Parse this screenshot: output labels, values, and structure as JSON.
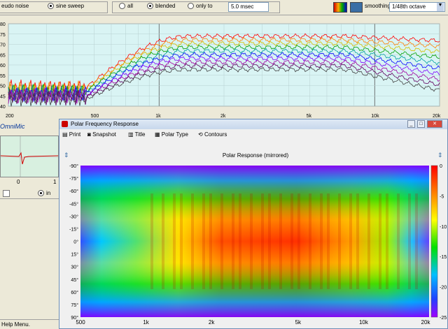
{
  "toolbar": {
    "pseudo_noise": "eudo noise",
    "sine_sweep": "sine sweep",
    "all": "all",
    "blended": "blended",
    "only_to": "only to",
    "window_value": "5.0 msec",
    "smoothing_label": "smoothing",
    "smoothing_value": "1/48th octave"
  },
  "main_chart": {
    "y_ticks": [
      "80",
      "75",
      "70",
      "65",
      "60",
      "55",
      "50",
      "45",
      "40"
    ],
    "x_ticks": [
      "200",
      "500",
      "1k",
      "2k",
      "5k",
      "10k",
      "20k"
    ],
    "series_colors": [
      "#ff0000",
      "#ff8000",
      "#d4c000",
      "#00a000",
      "#00a0a0",
      "#0000ff",
      "#8000ff",
      "#a000a0",
      "#600060",
      "#404040"
    ]
  },
  "left_panel": {
    "mic_label": "OmniMic",
    "tick_0": "0",
    "tick_1": "1",
    "in_label": "in"
  },
  "polar_window": {
    "title": "Polar Frequency Response",
    "menu": {
      "print": "Print",
      "snapshot": "Snapshot",
      "title": "Title",
      "polar_type": "Polar Type",
      "contours": "Contours"
    },
    "chart_title": "Polar Response (mirrored)",
    "y_ticks": [
      "-90°",
      "-75°",
      "-60°",
      "-45°",
      "-30°",
      "-15°",
      "0°",
      "15°",
      "30°",
      "45°",
      "60°",
      "75°",
      "90°"
    ],
    "x_ticks": [
      "500",
      "1k",
      "2k",
      "5k",
      "10k",
      "20k"
    ],
    "scale_ticks": [
      "0",
      "-5",
      "-10",
      "-15",
      "-20",
      "-25"
    ]
  },
  "status": {
    "text": "Help Menu."
  }
}
